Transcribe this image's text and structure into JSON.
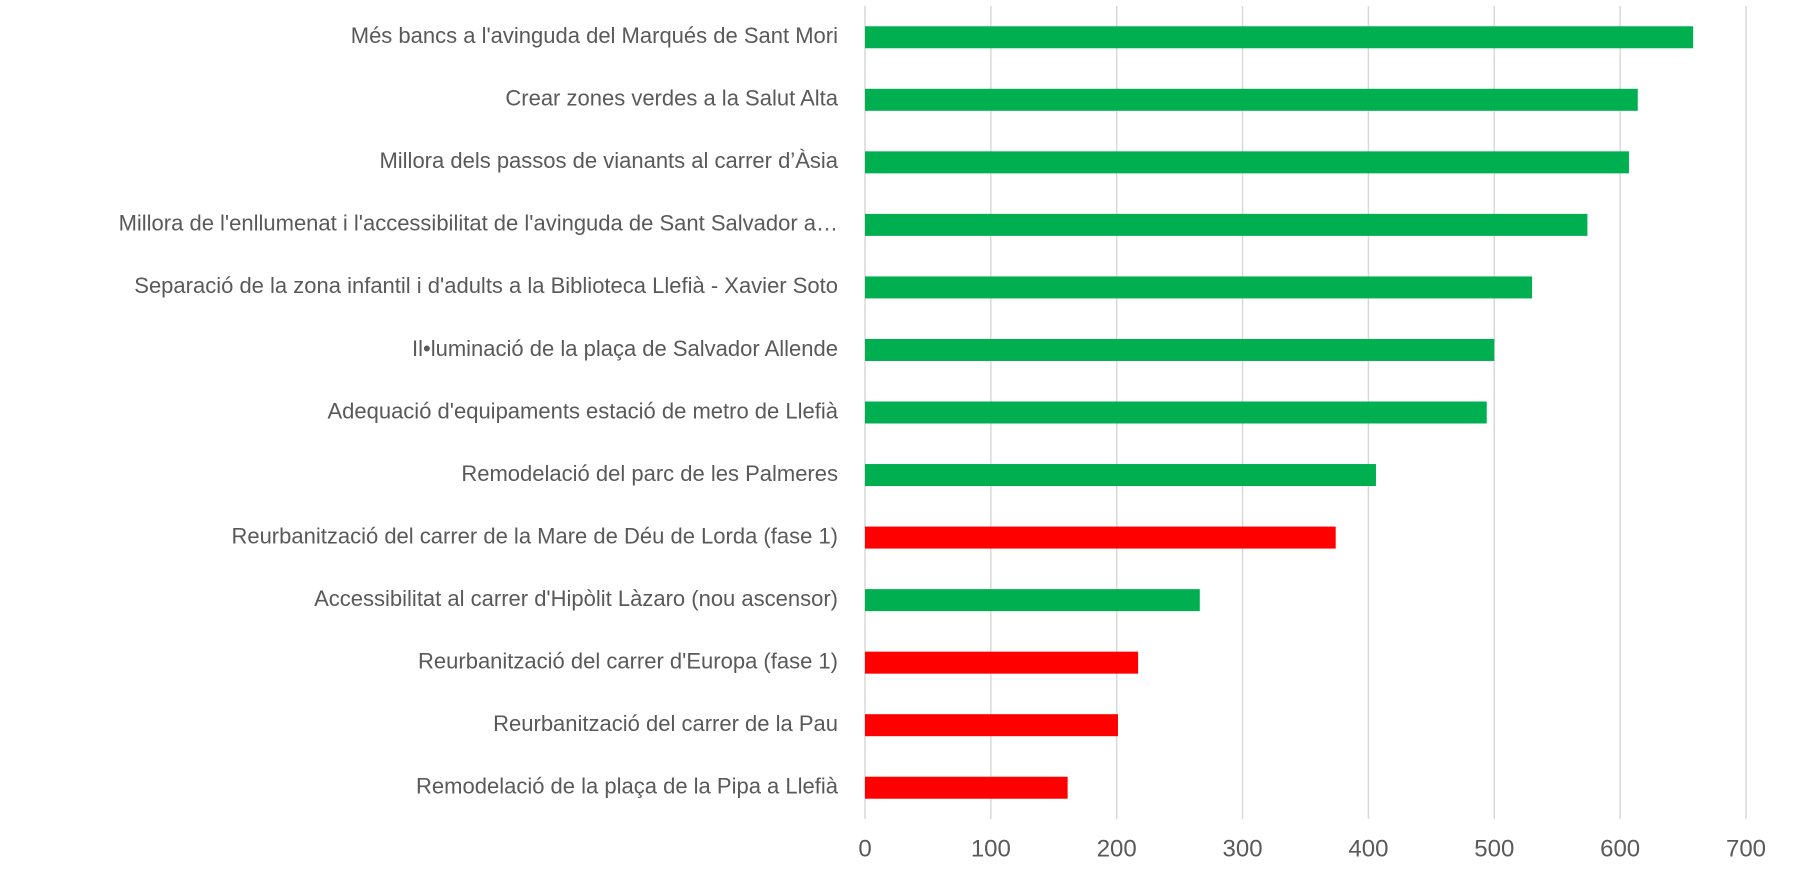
{
  "chart_data": {
    "type": "hbar",
    "categories": [
      "Més bancs a l'avinguda del Marqués de Sant Mori",
      "Crear zones verdes a la Salut Alta",
      "Millora dels passos de vianants al carrer d’Àsia",
      "Millora de l'enllumenat i l'accessibilitat de l'avinguda de Sant Salvador a…",
      "Separació de la zona infantil i d'adults a la Biblioteca Llefià - Xavier Soto",
      "Il•luminació de la plaça de Salvador Allende",
      "Adequació d'equipaments estació de metro de Llefià",
      "Remodelació del parc de les Palmeres",
      "Reurbanització del carrer de la Mare de Déu de Lorda (fase 1)",
      "Accessibilitat al carrer d'Hipòlit Làzaro (nou ascensor)",
      "Reurbanització del carrer d'Europa (fase 1)",
      "Reurbanització del carrer de la Pau",
      "Remodelació de la plaça de la Pipa a Llefià"
    ],
    "values": [
      658,
      614,
      607,
      574,
      530,
      500,
      494,
      406,
      374,
      266,
      217,
      201,
      161
    ],
    "colors": [
      "#00b050",
      "#00b050",
      "#00b050",
      "#00b050",
      "#00b050",
      "#00b050",
      "#00b050",
      "#00b050",
      "#ff0000",
      "#00b050",
      "#ff0000",
      "#ff0000",
      "#ff0000"
    ],
    "xlim": [
      0,
      700
    ],
    "xticks": [
      0,
      100,
      200,
      300,
      400,
      500,
      600,
      700
    ],
    "grid": true
  }
}
